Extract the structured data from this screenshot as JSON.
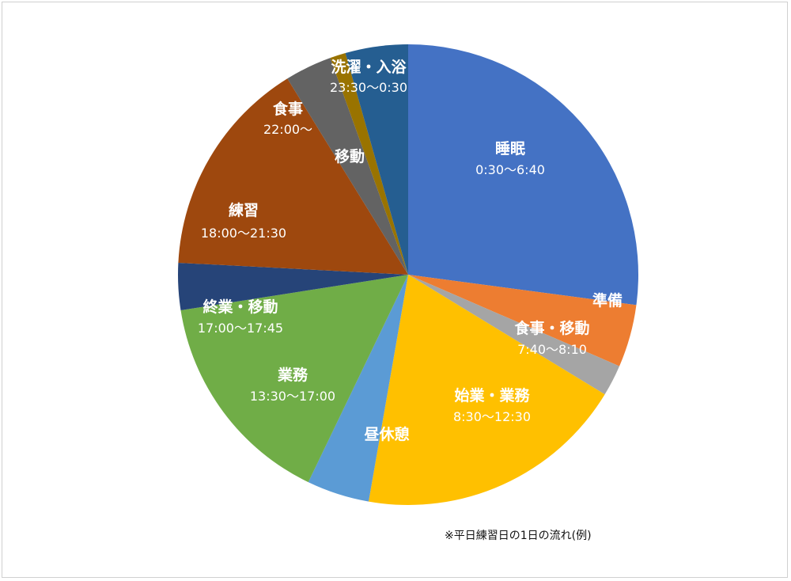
{
  "chart_data": {
    "type": "pie",
    "title": "",
    "start_angle": "12 o'clock, clockwise",
    "slices": [
      {
        "name": "睡眠",
        "time": "0:30～6:40",
        "value": 370,
        "color": "#4472C4"
      },
      {
        "name": "準備",
        "time": "",
        "value": 60,
        "color": "#ED7D31"
      },
      {
        "name": "食事・移動",
        "time": "7:40～8:10",
        "value": 30,
        "color": "#A5A5A5"
      },
      {
        "name": "始業・業務",
        "time": "8:30～12:30",
        "value": 260,
        "color": "#FFC000"
      },
      {
        "name": "昼休憩",
        "time": "",
        "value": 60,
        "color": "#5B9BD5"
      },
      {
        "name": "業務",
        "time": "13:30～17:00",
        "value": 210,
        "color": "#70AD47"
      },
      {
        "name": "終業・移動",
        "time": "17:00～17:45",
        "value": 45,
        "color": "#264478"
      },
      {
        "name": "練習",
        "time": "18:00～21:30",
        "value": 210,
        "color": "#9E480E"
      },
      {
        "name": "食事",
        "time": "22:00～",
        "value": 45,
        "color": "#636363"
      },
      {
        "name": "移動",
        "time": "",
        "value": 15,
        "color": "#997300"
      },
      {
        "name": "洗濯・入浴",
        "time": "23:30～0:30",
        "value": 60,
        "color": "#255E91"
      }
    ]
  },
  "footnote": "※平日練習日の1日の流れ(例)"
}
